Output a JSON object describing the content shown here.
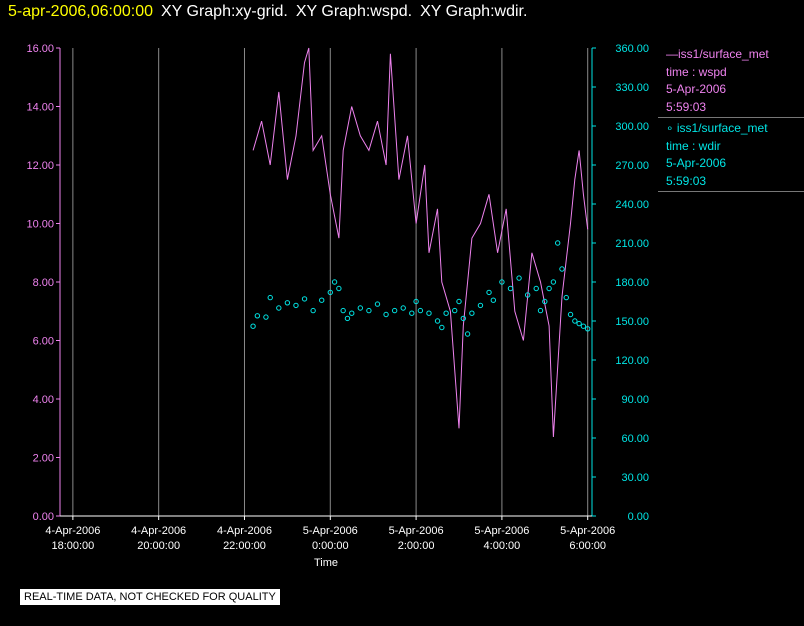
{
  "header": {
    "timestamp": "5-apr-2006,06:00:00",
    "graphs": [
      "XY Graph:xy-grid.",
      "XY Graph:wspd.",
      "XY Graph:wdir."
    ]
  },
  "legend": [
    {
      "label": "iss1/surface_met",
      "field": "time : wspd",
      "date": "5-Apr-2006",
      "time": "5:59:03",
      "color": "#ee82ee",
      "marker": "line"
    },
    {
      "label": "iss1/surface_met",
      "field": "time : wdir",
      "date": "5-Apr-2006",
      "time": "5:59:03",
      "color": "#00e5e5",
      "marker": "circle"
    }
  ],
  "banner": "REAL-TIME DATA, NOT CHECKED FOR QUALITY",
  "chart_data": {
    "type": "line",
    "xlabel": "Time",
    "x_ticks": [
      {
        "date": "4-Apr-2006",
        "time": "18:00:00",
        "hours": 18
      },
      {
        "date": "4-Apr-2006",
        "time": "20:00:00",
        "hours": 20
      },
      {
        "date": "4-Apr-2006",
        "time": "22:00:00",
        "hours": 22
      },
      {
        "date": "5-Apr-2006",
        "time": "0:00:00",
        "hours": 24
      },
      {
        "date": "5-Apr-2006",
        "time": "2:00:00",
        "hours": 26
      },
      {
        "date": "5-Apr-2006",
        "time": "4:00:00",
        "hours": 28
      },
      {
        "date": "5-Apr-2006",
        "time": "6:00:00",
        "hours": 30
      }
    ],
    "xlim_hours": [
      17.7,
      30.1
    ],
    "grid": true,
    "y_left": {
      "ticks": [
        "0.00",
        "2.00",
        "4.00",
        "6.00",
        "8.00",
        "10.00",
        "12.00",
        "14.00",
        "16.00"
      ],
      "lim": [
        0,
        16
      ],
      "color": "#ee82ee"
    },
    "y_right": {
      "ticks": [
        "0.00",
        "30.00",
        "60.00",
        "90.00",
        "120.00",
        "150.00",
        "180.00",
        "210.00",
        "240.00",
        "270.00",
        "300.00",
        "330.00",
        "360.00"
      ],
      "lim": [
        0,
        360
      ],
      "color": "#00e5e5"
    },
    "series": [
      {
        "name": "iss1/surface_met time : wspd",
        "axis": "left",
        "points": [
          [
            22.2,
            12.5
          ],
          [
            22.4,
            13.5
          ],
          [
            22.6,
            12.0
          ],
          [
            22.8,
            14.5
          ],
          [
            23.0,
            11.5
          ],
          [
            23.2,
            13.0
          ],
          [
            23.4,
            15.5
          ],
          [
            23.5,
            16.0
          ],
          [
            23.6,
            12.5
          ],
          [
            23.8,
            13.0
          ],
          [
            24.0,
            11.0
          ],
          [
            24.2,
            9.5
          ],
          [
            24.3,
            12.5
          ],
          [
            24.5,
            14.0
          ],
          [
            24.7,
            13.0
          ],
          [
            24.9,
            12.5
          ],
          [
            25.1,
            13.5
          ],
          [
            25.3,
            12.0
          ],
          [
            25.4,
            15.8
          ],
          [
            25.6,
            11.5
          ],
          [
            25.8,
            13.0
          ],
          [
            26.0,
            10.0
          ],
          [
            26.2,
            12.0
          ],
          [
            26.3,
            9.0
          ],
          [
            26.5,
            10.5
          ],
          [
            26.6,
            8.0
          ],
          [
            26.8,
            7.0
          ],
          [
            27.0,
            3.0
          ],
          [
            27.1,
            6.5
          ],
          [
            27.3,
            9.5
          ],
          [
            27.5,
            10.0
          ],
          [
            27.7,
            11.0
          ],
          [
            27.9,
            9.0
          ],
          [
            28.1,
            10.5
          ],
          [
            28.3,
            7.0
          ],
          [
            28.5,
            6.0
          ],
          [
            28.7,
            9.0
          ],
          [
            28.9,
            8.0
          ],
          [
            29.1,
            6.5
          ],
          [
            29.2,
            2.7
          ],
          [
            29.4,
            7.5
          ],
          [
            29.6,
            10.0
          ],
          [
            29.7,
            11.5
          ],
          [
            29.8,
            12.5
          ],
          [
            29.9,
            11.0
          ],
          [
            30.0,
            9.8
          ]
        ]
      },
      {
        "name": "iss1/surface_met time : wdir",
        "axis": "right",
        "points": [
          [
            22.2,
            146
          ],
          [
            22.3,
            154
          ],
          [
            22.5,
            153
          ],
          [
            22.6,
            168
          ],
          [
            22.8,
            160
          ],
          [
            23.0,
            164
          ],
          [
            23.2,
            162
          ],
          [
            23.4,
            167
          ],
          [
            23.6,
            158
          ],
          [
            23.8,
            166
          ],
          [
            24.0,
            172
          ],
          [
            24.1,
            180
          ],
          [
            24.2,
            175
          ],
          [
            24.3,
            158
          ],
          [
            24.4,
            152
          ],
          [
            24.5,
            156
          ],
          [
            24.7,
            160
          ],
          [
            24.9,
            158
          ],
          [
            25.1,
            163
          ],
          [
            25.3,
            155
          ],
          [
            25.5,
            158
          ],
          [
            25.7,
            160
          ],
          [
            25.9,
            156
          ],
          [
            26.0,
            165
          ],
          [
            26.1,
            158
          ],
          [
            26.3,
            156
          ],
          [
            26.5,
            150
          ],
          [
            26.6,
            145
          ],
          [
            26.7,
            156
          ],
          [
            26.9,
            158
          ],
          [
            27.0,
            165
          ],
          [
            27.1,
            152
          ],
          [
            27.2,
            140
          ],
          [
            27.3,
            156
          ],
          [
            27.5,
            162
          ],
          [
            27.7,
            172
          ],
          [
            27.8,
            166
          ],
          [
            28.0,
            180
          ],
          [
            28.2,
            175
          ],
          [
            28.4,
            183
          ],
          [
            28.6,
            170
          ],
          [
            28.8,
            175
          ],
          [
            28.9,
            158
          ],
          [
            29.0,
            165
          ],
          [
            29.1,
            175
          ],
          [
            29.2,
            180
          ],
          [
            29.3,
            210
          ],
          [
            29.4,
            190
          ],
          [
            29.5,
            168
          ],
          [
            29.6,
            155
          ],
          [
            29.7,
            150
          ],
          [
            29.8,
            148
          ],
          [
            29.9,
            146
          ],
          [
            30.0,
            144
          ]
        ]
      }
    ]
  }
}
